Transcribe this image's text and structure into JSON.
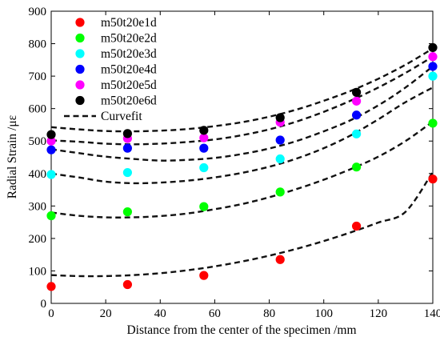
{
  "chart_data": {
    "type": "scatter",
    "xlabel": "Distance from the center of the specimen /mm",
    "ylabel": "Radial Strain /με",
    "xlim": [
      0,
      140
    ],
    "ylim": [
      0,
      900
    ],
    "xticks": [
      0,
      20,
      40,
      60,
      80,
      100,
      120,
      140
    ],
    "yticks": [
      0,
      100,
      200,
      300,
      400,
      500,
      600,
      700,
      800,
      900
    ],
    "grid": false,
    "legend_position": "top-left",
    "x": [
      0,
      28,
      56,
      84,
      112,
      140
    ],
    "series": [
      {
        "name": "m50t20e1d",
        "color": "#ff0000",
        "values": [
          52,
          58,
          86,
          135,
          238,
          383
        ]
      },
      {
        "name": "m50t20e2d",
        "color": "#00ff00",
        "values": [
          270,
          282,
          298,
          343,
          420,
          555
        ]
      },
      {
        "name": "m50t20e3d",
        "color": "#00ffff",
        "values": [
          397,
          403,
          418,
          445,
          522,
          700
        ]
      },
      {
        "name": "m50t20e4d",
        "color": "#0000ff",
        "values": [
          473,
          478,
          478,
          503,
          580,
          730
        ]
      },
      {
        "name": "m50t20e5d",
        "color": "#ff00ff",
        "values": [
          500,
          508,
          510,
          558,
          623,
          760
        ]
      },
      {
        "name": "m50t20e6d",
        "color": "#000000",
        "values": [
          520,
          523,
          533,
          572,
          650,
          788
        ]
      }
    ],
    "curvefit": {
      "name": "Curvefit",
      "color": "#111111",
      "x": [
        0,
        10,
        20,
        30,
        40,
        50,
        60,
        70,
        80,
        90,
        100,
        110,
        120,
        130,
        140
      ],
      "curves": [
        [
          87,
          84,
          84,
          87,
          93,
          102,
          114,
          129,
          147,
          168,
          192,
          219,
          249,
          282,
          405
        ],
        [
          280,
          270,
          265,
          265,
          269,
          277,
          290,
          306,
          327,
          352,
          381,
          414,
          452,
          500,
          560
        ],
        [
          400,
          388,
          375,
          370,
          372,
          378,
          388,
          402,
          421,
          446,
          478,
          518,
          567,
          620,
          665
        ],
        [
          475,
          463,
          452,
          445,
          440,
          442,
          448,
          460,
          477,
          500,
          530,
          565,
          610,
          665,
          730
        ],
        [
          502,
          498,
          492,
          490,
          492,
          497,
          505,
          518,
          536,
          560,
          590,
          625,
          665,
          710,
          760
        ],
        [
          543,
          536,
          531,
          530,
          532,
          537,
          546,
          558,
          575,
          597,
          624,
          655,
          692,
          735,
          785
        ]
      ]
    }
  }
}
